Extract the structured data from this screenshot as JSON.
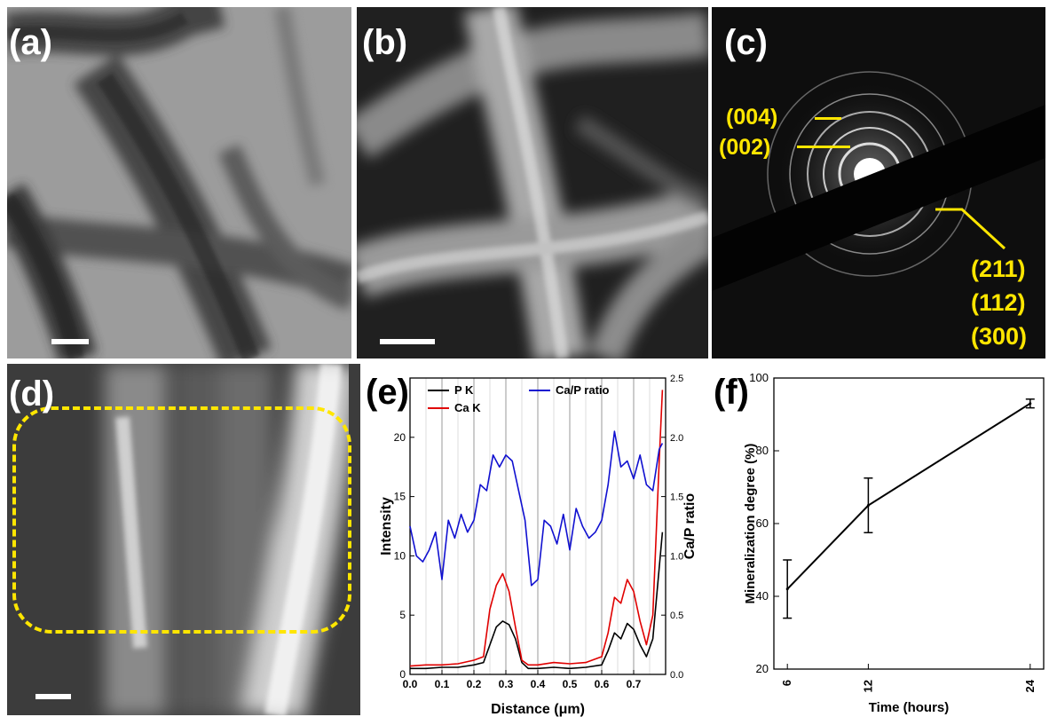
{
  "panels": {
    "a": {
      "label": "(a)"
    },
    "b": {
      "label": "(b)"
    },
    "c": {
      "label": "(c)",
      "annotations": [
        "(004)",
        "(002)",
        "(211)",
        "(112)",
        "(300)"
      ]
    },
    "d": {
      "label": "(d)"
    },
    "e": {
      "label": "(e)"
    },
    "f": {
      "label": "(f)"
    }
  },
  "colors": {
    "annotation_yellow": "#ffe600",
    "series_pk": "#000000",
    "series_cak": "#e00000",
    "series_ratio": "#1010d0"
  },
  "chart_data": [
    {
      "id": "e",
      "type": "line",
      "xlabel": "Distance (μm)",
      "ylabel": "Intensity",
      "y2label": "Ca/P ratio",
      "xlim": [
        0,
        0.8
      ],
      "ylim": [
        0,
        25
      ],
      "y2lim": [
        0,
        2.5
      ],
      "xticks": [
        "0.0",
        "0.1",
        "0.2",
        "0.3",
        "0.4",
        "0.5",
        "0.6",
        "0.7"
      ],
      "yticks": [
        "0",
        "5",
        "10",
        "15",
        "20"
      ],
      "y2ticks": [
        "0.0",
        "0.5",
        "1.0",
        "1.5",
        "2.0",
        "2.5"
      ],
      "grid": "vertical",
      "legend": [
        "P K",
        "Ca K",
        "Ca/P ratio"
      ],
      "series": [
        {
          "name": "P K",
          "axis": "left",
          "x": [
            0,
            0.05,
            0.1,
            0.15,
            0.2,
            0.23,
            0.25,
            0.27,
            0.29,
            0.31,
            0.33,
            0.35,
            0.37,
            0.4,
            0.45,
            0.5,
            0.55,
            0.6,
            0.62,
            0.64,
            0.66,
            0.68,
            0.7,
            0.72,
            0.74,
            0.76,
            0.78,
            0.79
          ],
          "y": [
            0.5,
            0.5,
            0.6,
            0.6,
            0.8,
            1.0,
            2.5,
            4.0,
            4.5,
            4.2,
            3.0,
            1.0,
            0.5,
            0.5,
            0.6,
            0.5,
            0.6,
            0.8,
            2.0,
            3.5,
            3.0,
            4.3,
            3.8,
            2.5,
            1.5,
            3.0,
            9.0,
            12.0
          ]
        },
        {
          "name": "Ca K",
          "axis": "left",
          "x": [
            0,
            0.05,
            0.1,
            0.15,
            0.2,
            0.23,
            0.25,
            0.27,
            0.29,
            0.31,
            0.33,
            0.35,
            0.37,
            0.4,
            0.45,
            0.5,
            0.55,
            0.6,
            0.62,
            0.64,
            0.66,
            0.68,
            0.7,
            0.72,
            0.74,
            0.76,
            0.78,
            0.79
          ],
          "y": [
            0.7,
            0.8,
            0.8,
            0.9,
            1.2,
            1.5,
            5.5,
            7.5,
            8.5,
            7.0,
            4.0,
            1.2,
            0.8,
            0.8,
            1.0,
            0.9,
            1.0,
            1.5,
            3.5,
            6.5,
            6.0,
            8.0,
            7.0,
            4.5,
            2.5,
            5.0,
            18.0,
            24.0
          ]
        },
        {
          "name": "Ca/P ratio",
          "axis": "right",
          "x": [
            0,
            0.02,
            0.04,
            0.06,
            0.08,
            0.1,
            0.12,
            0.14,
            0.16,
            0.18,
            0.2,
            0.22,
            0.24,
            0.26,
            0.28,
            0.3,
            0.32,
            0.34,
            0.36,
            0.38,
            0.4,
            0.42,
            0.44,
            0.46,
            0.48,
            0.5,
            0.52,
            0.54,
            0.56,
            0.58,
            0.6,
            0.62,
            0.64,
            0.66,
            0.68,
            0.7,
            0.72,
            0.74,
            0.76,
            0.78,
            0.79
          ],
          "y": [
            1.25,
            1.0,
            0.95,
            1.05,
            1.2,
            0.8,
            1.3,
            1.15,
            1.35,
            1.2,
            1.3,
            1.6,
            1.55,
            1.85,
            1.75,
            1.85,
            1.8,
            1.55,
            1.3,
            0.75,
            0.8,
            1.3,
            1.25,
            1.1,
            1.35,
            1.05,
            1.4,
            1.25,
            1.15,
            1.2,
            1.3,
            1.6,
            2.05,
            1.75,
            1.8,
            1.65,
            1.85,
            1.6,
            1.55,
            1.9,
            1.95
          ]
        }
      ]
    },
    {
      "id": "f",
      "type": "line",
      "xlabel": "Time (hours)",
      "ylabel": "Mineralization degree (%)",
      "ylim": [
        20,
        100
      ],
      "yticks": [
        "20",
        "40",
        "60",
        "80",
        "100"
      ],
      "categories": [
        "6",
        "12",
        "24"
      ],
      "x": [
        6,
        12,
        24
      ],
      "values": [
        42,
        65,
        93
      ],
      "errors": [
        8,
        7.5,
        1.2
      ]
    }
  ]
}
